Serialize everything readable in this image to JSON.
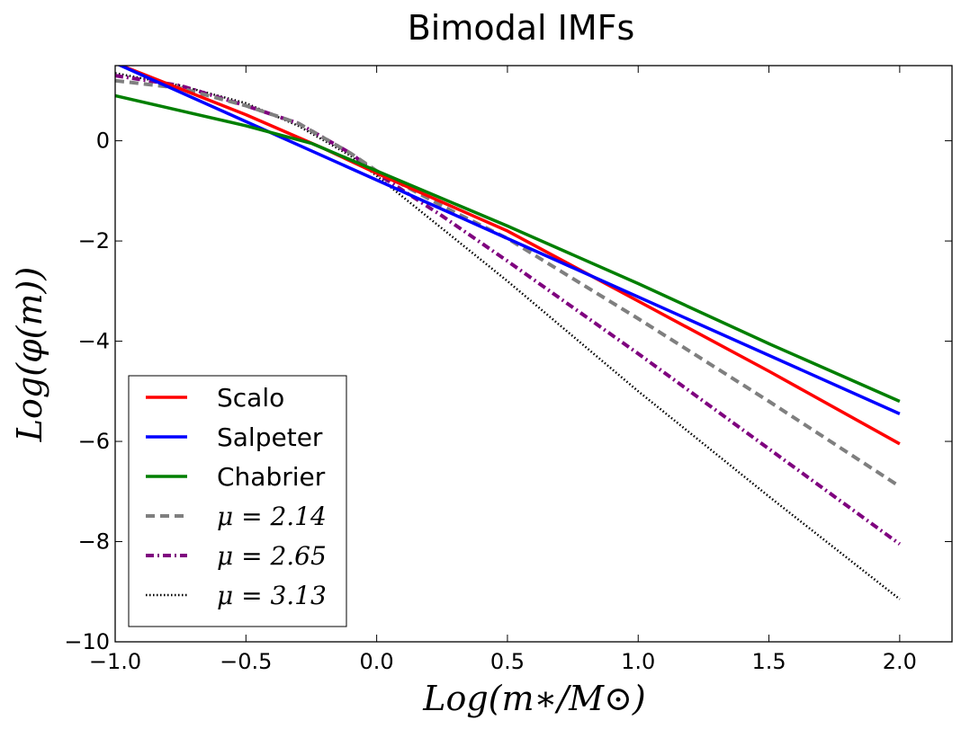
{
  "chart_data": {
    "type": "line",
    "title": "Bimodal IMFs",
    "xlabel": "Log(m∗/M⊙)",
    "ylabel": "Log(φ(m))",
    "xlim": [
      -1.0,
      2.2
    ],
    "ylim": [
      -10,
      1.5
    ],
    "x_ticks": [
      -1.0,
      -0.5,
      0.0,
      0.5,
      1.0,
      1.5,
      2.0
    ],
    "x_tick_labels": [
      "−1.0",
      "−0.5",
      "0.0",
      "0.5",
      "1.0",
      "1.5",
      "2.0"
    ],
    "y_ticks": [
      0,
      -2,
      -4,
      -6,
      -8,
      -10
    ],
    "y_tick_labels": [
      "0",
      "−2",
      "−4",
      "−6",
      "−8",
      "−10"
    ],
    "grid": false,
    "legend_position": "lower-left",
    "series": [
      {
        "name": "Scalo",
        "color": "#ff0000",
        "style": "solid",
        "x": [
          -1.0,
          -0.5,
          -0.2,
          0.0,
          0.5,
          1.0,
          1.5,
          2.0
        ],
        "y": [
          1.55,
          0.52,
          -0.16,
          -0.65,
          -1.8,
          -3.2,
          -4.6,
          -6.05
        ]
      },
      {
        "name": "Salpeter",
        "color": "#0000ff",
        "style": "solid",
        "x": [
          -1.0,
          2.0
        ],
        "y": [
          1.55,
          -5.45
        ]
      },
      {
        "name": "Chabrier",
        "color": "#007f00",
        "style": "solid",
        "x": [
          -1.0,
          -0.75,
          -0.5,
          -0.25,
          0.0,
          0.5,
          1.0,
          1.5,
          2.0
        ],
        "y": [
          0.9,
          0.6,
          0.3,
          -0.05,
          -0.6,
          -1.7,
          -2.85,
          -4.05,
          -5.2
        ]
      },
      {
        "name": "μ = 2.14",
        "color": "#7f7f7f",
        "style": "dashed",
        "x": [
          -1.0,
          -0.75,
          -0.5,
          -0.3,
          -0.1,
          0.0,
          0.25,
          0.5,
          1.0,
          1.5,
          2.0
        ],
        "y": [
          1.2,
          1.05,
          0.7,
          0.35,
          -0.25,
          -0.6,
          -1.3,
          -1.95,
          -3.55,
          -5.2,
          -6.9
        ]
      },
      {
        "name": "μ = 2.65",
        "color": "#7f007f",
        "style": "dashdot",
        "x": [
          -1.0,
          -0.75,
          -0.5,
          -0.3,
          -0.1,
          0.0,
          0.25,
          0.5,
          1.0,
          1.5,
          2.0
        ],
        "y": [
          1.3,
          1.1,
          0.7,
          0.35,
          -0.25,
          -0.65,
          -1.5,
          -2.4,
          -4.25,
          -6.15,
          -8.05
        ]
      },
      {
        "name": "μ = 3.13",
        "color": "#000000",
        "style": "dotted",
        "x": [
          -1.0,
          -0.75,
          -0.5,
          -0.3,
          -0.1,
          0.0,
          0.25,
          0.5,
          1.0,
          1.5,
          2.0
        ],
        "y": [
          1.35,
          1.1,
          0.75,
          0.3,
          -0.3,
          -0.7,
          -1.75,
          -2.8,
          -5.0,
          -7.1,
          -9.15
        ]
      }
    ],
    "legend": [
      {
        "label": "Scalo",
        "math": false
      },
      {
        "label": "Salpeter",
        "math": false
      },
      {
        "label": "Chabrier",
        "math": false
      },
      {
        "label": "μ = 2.14",
        "math": true
      },
      {
        "label": "μ = 2.65",
        "math": true
      },
      {
        "label": "μ = 3.13",
        "math": true
      }
    ]
  }
}
